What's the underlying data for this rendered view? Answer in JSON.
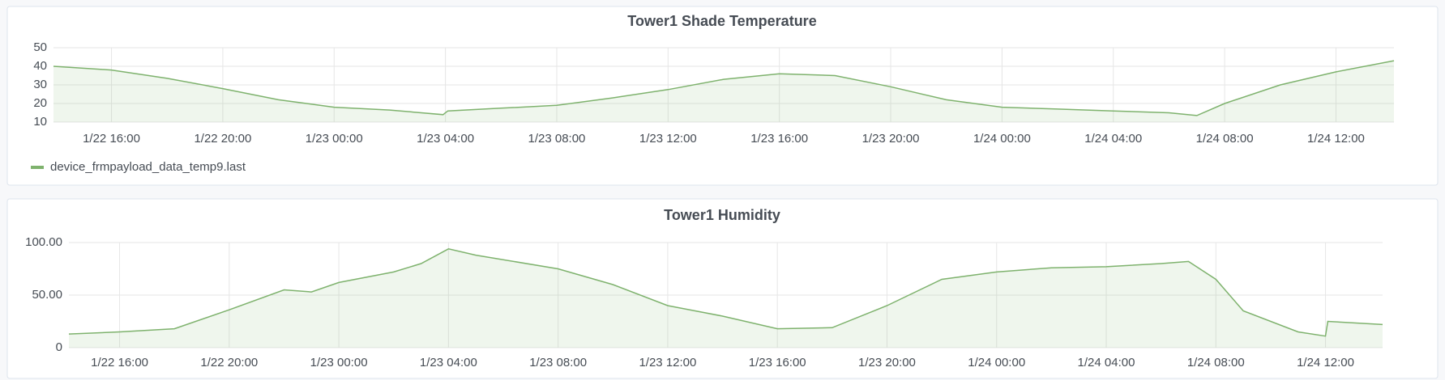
{
  "chart_data": [
    {
      "type": "line",
      "title": "Tower1 Shade Temperature",
      "x": [
        "1/22 13:55",
        "1/22 16:00",
        "1/22 18:00",
        "1/22 20:00",
        "1/22 22:00",
        "1/23 00:00",
        "1/23 02:00",
        "1/23 03:55",
        "1/23 04:05",
        "1/23 06:00",
        "1/23 08:00",
        "1/23 10:00",
        "1/23 12:00",
        "1/23 14:00",
        "1/23 16:00",
        "1/23 18:00",
        "1/23 20:00",
        "1/23 22:00",
        "1/24 00:00",
        "1/24 02:00",
        "1/24 04:00",
        "1/24 06:00",
        "1/24 07:00",
        "1/24 08:00",
        "1/24 10:00",
        "1/24 12:00",
        "1/24 14:05"
      ],
      "series": [
        {
          "name": "device_frmpayload_data_temp9.last",
          "color": "#7eb26d",
          "values": [
            40,
            38,
            33.5,
            28,
            22,
            18,
            16.5,
            14,
            16,
            17.5,
            19,
            23,
            27.5,
            33,
            36,
            35,
            29,
            22,
            18,
            17,
            16,
            15,
            13.5,
            20,
            30,
            37,
            43
          ]
        }
      ],
      "xlim": [
        "1/22 13:55",
        "1/24 14:05"
      ],
      "xticks": [
        "1/22 16:00",
        "1/22 20:00",
        "1/23 00:00",
        "1/23 04:00",
        "1/23 08:00",
        "1/23 12:00",
        "1/23 16:00",
        "1/23 20:00",
        "1/24 00:00",
        "1/24 04:00",
        "1/24 08:00",
        "1/24 12:00"
      ],
      "ylim": [
        10,
        50
      ],
      "yticks": [
        10,
        20,
        30,
        40,
        50
      ],
      "grid": true
    },
    {
      "type": "line",
      "title": "Tower1 Humidity",
      "x": [
        "1/22 14:09",
        "1/22 16:00",
        "1/22 18:00",
        "1/22 20:00",
        "1/22 22:00",
        "1/22 23:00",
        "1/23 00:00",
        "1/23 02:00",
        "1/23 03:00",
        "1/23 04:00",
        "1/23 05:00",
        "1/23 08:00",
        "1/23 10:00",
        "1/23 12:00",
        "1/23 14:00",
        "1/23 16:00",
        "1/23 18:00",
        "1/23 20:00",
        "1/23 22:00",
        "1/24 00:00",
        "1/24 02:00",
        "1/24 04:00",
        "1/24 06:00",
        "1/24 07:00",
        "1/24 08:00",
        "1/24 09:00",
        "1/24 11:00",
        "1/24 12:00",
        "1/24 12:05",
        "1/24 14:05"
      ],
      "series": [
        {
          "color": "#7eb26d",
          "values": [
            13,
            15,
            18,
            36,
            55,
            53,
            62,
            72,
            80,
            94,
            88,
            75,
            60,
            40,
            30,
            18,
            19,
            40,
            65,
            72,
            76,
            77,
            80,
            82,
            65,
            35,
            15,
            11,
            25,
            22
          ]
        }
      ],
      "xlim": [
        "1/22 14:09",
        "1/24 14:05"
      ],
      "xticks": [
        "1/22 16:00",
        "1/22 20:00",
        "1/23 00:00",
        "1/23 04:00",
        "1/23 08:00",
        "1/23 12:00",
        "1/23 16:00",
        "1/23 20:00",
        "1/24 00:00",
        "1/24 04:00",
        "1/24 08:00",
        "1/24 12:00"
      ],
      "ylim": [
        0,
        100
      ],
      "yticks": [
        0,
        {
          "value": 50,
          "label": "50.00"
        },
        {
          "value": 100,
          "label": "100.00"
        }
      ],
      "grid": true
    }
  ]
}
